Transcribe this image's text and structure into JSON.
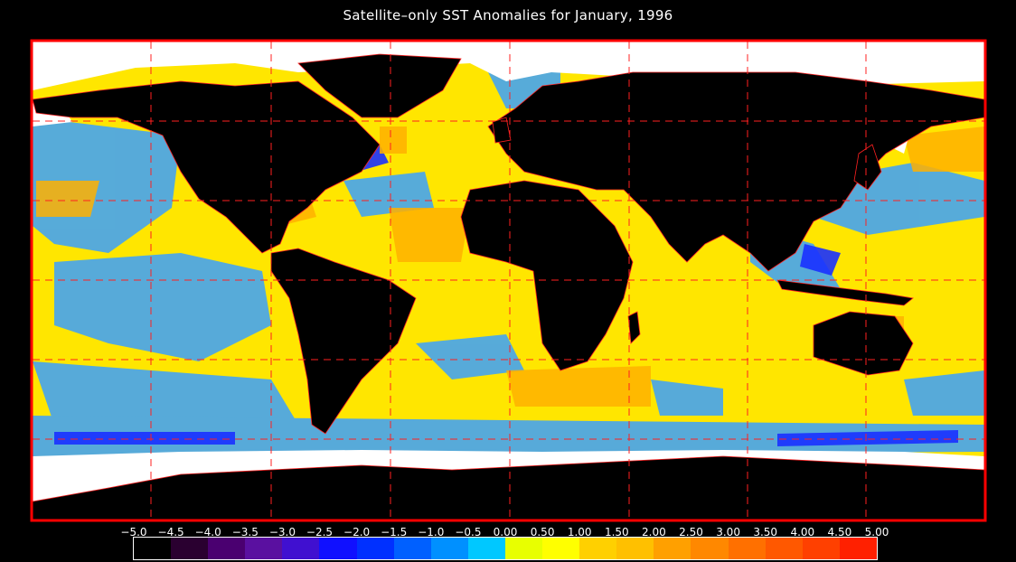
{
  "title": "Satellite–only SST Anomalies for January, 1996",
  "legend": {
    "tick_labels": [
      "−5.0",
      "−4.5",
      "−4.0",
      "−3.5",
      "−3.0",
      "−2.5",
      "−2.0",
      "−1.5",
      "−1.0",
      "−0.5",
      "0.00",
      "0.50",
      "1.00",
      "1.50",
      "2.00",
      "2.50",
      "3.00",
      "3.50",
      "4.00",
      "4.50",
      "5.00"
    ],
    "colors": [
      "#000000",
      "#2a0030",
      "#4a0070",
      "#5a10a0",
      "#4010d0",
      "#1010ff",
      "#0030ff",
      "#0060ff",
      "#0090ff",
      "#00c8ff",
      "#e8ff00",
      "#ffff00",
      "#ffd000",
      "#ffc000",
      "#ffa000",
      "#ff8800",
      "#ff7000",
      "#ff5800",
      "#ff4000",
      "#ff2000"
    ]
  },
  "map_colors": {
    "frame": "#ff0000",
    "grid": "#ff2020",
    "land": "#000000",
    "ice": "#ffffff",
    "ocean_base": "#ffe600",
    "cold": "#3aa0ff",
    "cold_strong": "#2040ff",
    "warm": "#ffb000"
  }
}
